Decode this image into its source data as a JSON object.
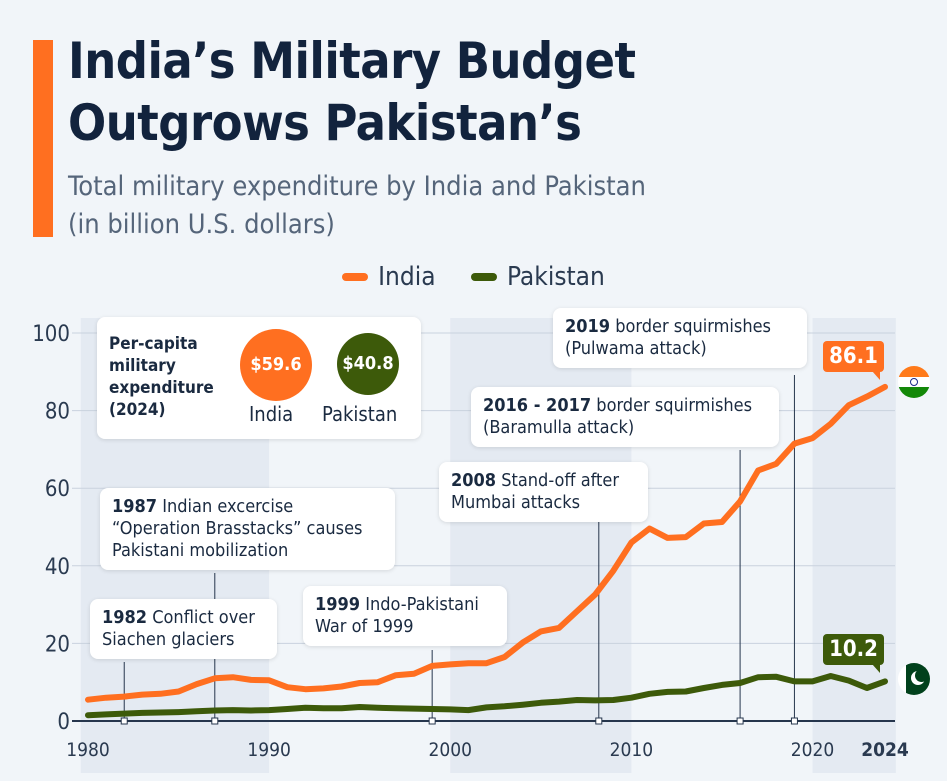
{
  "header": {
    "title_line1": "India’s Military Budget",
    "title_line2": "Outgrows Pakistan’s",
    "subtitle_line1": "Total military expenditure by India and Pakistan",
    "subtitle_line2": "(in billion U.S. dollars)"
  },
  "per_capita": {
    "title": "Per-capita military expenditure (2024)",
    "india_value": "$59.6",
    "india_label": "India",
    "pakistan_value": "$40.8",
    "pakistan_label": "Pakistan"
  },
  "annotations": [
    {
      "year": 1982,
      "bold": "1982",
      "text": " Conflict over Siachen glaciers"
    },
    {
      "year": 1987,
      "bold": "1987",
      "text": " Indian excercise “Operation Brasstacks” causes Pakistani mobilization"
    },
    {
      "year": 1999,
      "bold": "1999",
      "text": " Indo-Pakistani War of 1999"
    },
    {
      "year": 2008,
      "bold": "2008",
      "text": " Stand-off after Mumbai attacks"
    },
    {
      "year": 2016,
      "bold": "2016 - 2017",
      "text": " border squirmishes (Baramulla attack)"
    },
    {
      "year": 2019,
      "bold": "2019",
      "text": " border squirmishes (Pulwama attack)"
    }
  ],
  "colors": {
    "india": "#ff6f20",
    "pakistan": "#3d5a0a",
    "grid": "#c9d2de",
    "band": "#e4eaf2"
  },
  "chart_data": {
    "type": "line",
    "title": "India’s Military Budget Outgrows Pakistan’s",
    "subtitle": "Total military expenditure by India and Pakistan (in billion U.S. dollars)",
    "xlabel": "",
    "ylabel": "",
    "xlim": [
      1980,
      2024
    ],
    "ylim": [
      0,
      100
    ],
    "yticks": [
      0,
      20,
      40,
      60,
      80,
      100
    ],
    "xticks": [
      "1980",
      "1990",
      "2000",
      "2010",
      "2020",
      "2024"
    ],
    "grid": true,
    "legend": "top-center",
    "x": [
      1980,
      1981,
      1982,
      1983,
      1984,
      1985,
      1986,
      1987,
      1988,
      1989,
      1990,
      1991,
      1992,
      1993,
      1994,
      1995,
      1996,
      1997,
      1998,
      1999,
      2000,
      2001,
      2002,
      2003,
      2004,
      2005,
      2006,
      2007,
      2008,
      2009,
      2010,
      2011,
      2012,
      2013,
      2014,
      2015,
      2016,
      2017,
      2018,
      2019,
      2020,
      2021,
      2022,
      2023,
      2024
    ],
    "series": [
      {
        "name": "India",
        "end_label": "86.1",
        "values": [
          5.5,
          6,
          6.3,
          6.8,
          7,
          7.6,
          9.5,
          11,
          11.3,
          10.6,
          10.5,
          8.7,
          8.2,
          8.4,
          8.9,
          9.8,
          10,
          11.8,
          12.2,
          14.2,
          14.6,
          14.9,
          14.9,
          16.5,
          20.2,
          23.1,
          24,
          28.3,
          32.6,
          38.7,
          46,
          49.6,
          47.2,
          47.4,
          50.9,
          51.3,
          56.6,
          64.6,
          66.3,
          71.5,
          72.9,
          76.6,
          81.4,
          83.6,
          86.1
        ]
      },
      {
        "name": "Pakistan",
        "end_label": "10.2",
        "values": [
          1.5,
          1.7,
          1.9,
          2.1,
          2.2,
          2.3,
          2.5,
          2.7,
          2.8,
          2.7,
          2.8,
          3.1,
          3.4,
          3.3,
          3.3,
          3.6,
          3.4,
          3.3,
          3.2,
          3.1,
          3.0,
          2.8,
          3.5,
          3.8,
          4.2,
          4.7,
          5,
          5.4,
          5.3,
          5.4,
          6,
          7,
          7.5,
          7.6,
          8.5,
          9.3,
          9.8,
          11.3,
          11.4,
          10.2,
          10.2,
          11.6,
          10.4,
          8.5,
          10.2
        ]
      }
    ]
  }
}
